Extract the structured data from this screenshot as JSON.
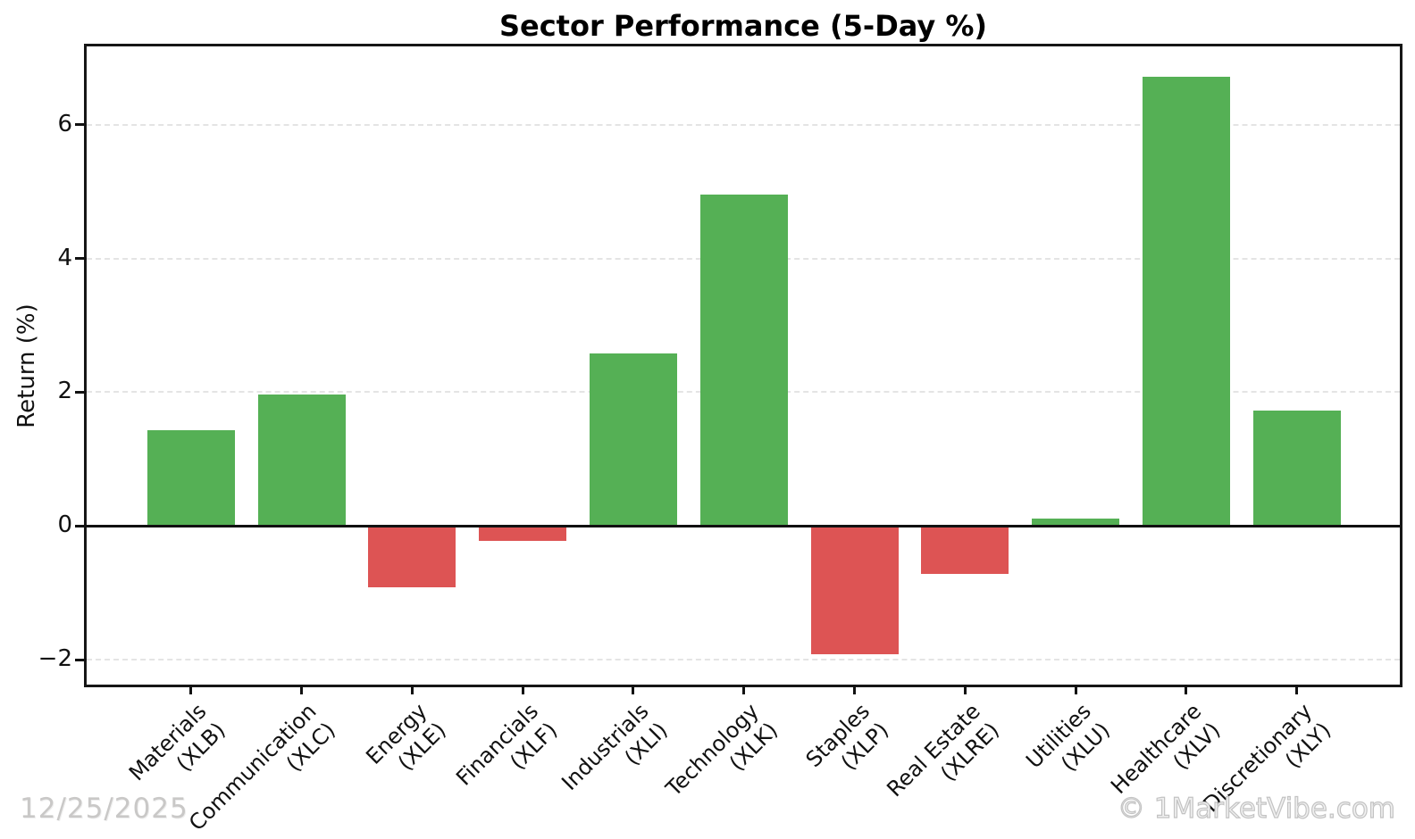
{
  "title": "Sector Performance (5-Day %)",
  "y_axis": {
    "label": "Return (%)",
    "tick_labels": [
      "6",
      "4",
      "2",
      "0",
      "−2"
    ]
  },
  "footer": {
    "date": "12/25/2025",
    "watermark": "© 1MarketVibe.com"
  },
  "chart_data": {
    "type": "bar",
    "title": "Sector Performance (5-Day %)",
    "xlabel": "",
    "ylabel": "Return (%)",
    "categories": [
      "Materials (XLB)",
      "Communication (XLC)",
      "Energy (XLE)",
      "Financials (XLF)",
      "Industrials (XLI)",
      "Technology (XLK)",
      "Staples (XLP)",
      "Real Estate (XLRE)",
      "Utilities (XLU)",
      "Healthcare (XLV)",
      "Discretionary (XLY)"
    ],
    "bars": [
      {
        "sector": "Materials",
        "ticker": "XLB",
        "value": 1.43
      },
      {
        "sector": "Communication",
        "ticker": "XLC",
        "value": 1.96
      },
      {
        "sector": "Energy",
        "ticker": "XLE",
        "value": -0.92
      },
      {
        "sector": "Financials",
        "ticker": "XLF",
        "value": -0.22
      },
      {
        "sector": "Industrials",
        "ticker": "XLI",
        "value": 2.58
      },
      {
        "sector": "Technology",
        "ticker": "XLK",
        "value": 4.96
      },
      {
        "sector": "Staples",
        "ticker": "XLP",
        "value": -1.92
      },
      {
        "sector": "Real Estate",
        "ticker": "XLRE",
        "value": -0.72
      },
      {
        "sector": "Utilities",
        "ticker": "XLU",
        "value": 0.11
      },
      {
        "sector": "Healthcare",
        "ticker": "XLV",
        "value": 6.72
      },
      {
        "sector": "Discretionary",
        "ticker": "XLY",
        "value": 1.72
      }
    ],
    "values": [
      1.43,
      1.96,
      -0.92,
      -0.22,
      2.58,
      4.96,
      -1.92,
      -0.72,
      0.11,
      6.72,
      1.72
    ],
    "ylim": [
      -2.37,
      7.17
    ],
    "yticks": [
      6,
      4,
      2,
      0,
      -2
    ],
    "grid": "horizontal-dashed",
    "legend": "none",
    "bar_colors": {
      "positive": "#55b055",
      "negative": "#dd5454"
    }
  }
}
